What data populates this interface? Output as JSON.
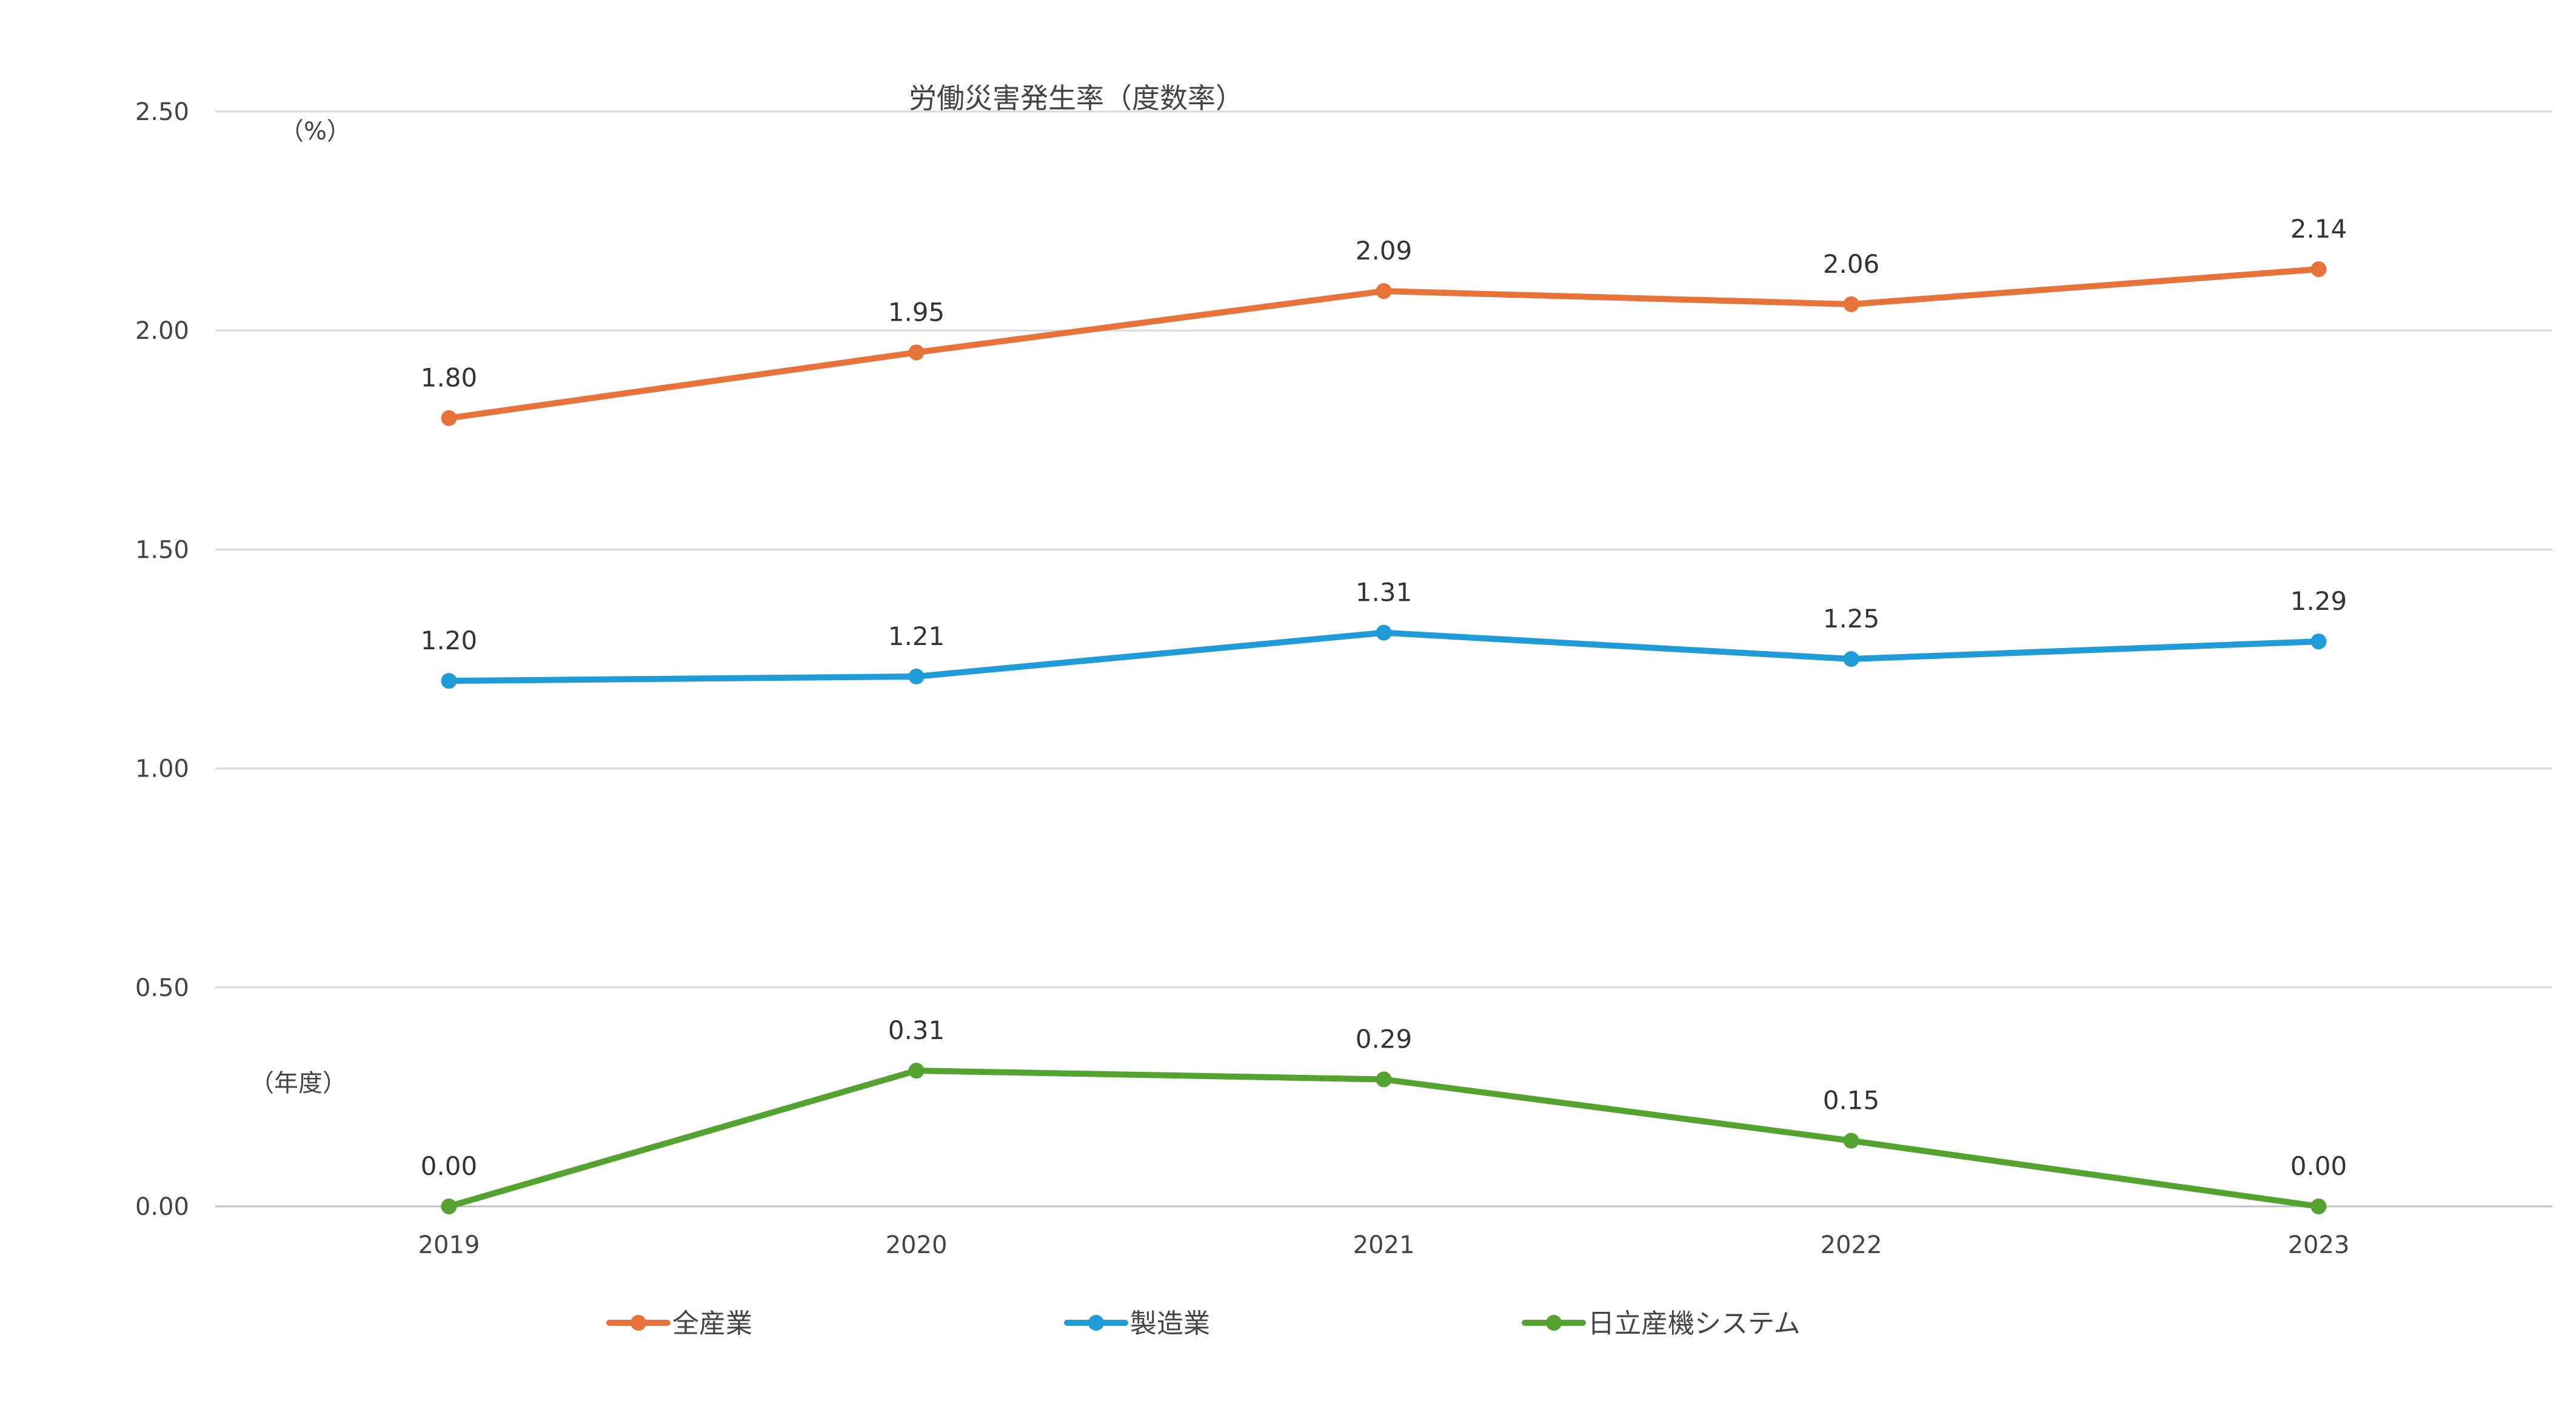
{
  "chart_data": {
    "type": "line",
    "title": "労働災害発生率（度数率）",
    "ylabel": "（%）",
    "xlabel": "（年度）",
    "categories": [
      "2019",
      "2020",
      "2021",
      "2022",
      "2023"
    ],
    "y_ticks": [
      "0.00",
      "0.50",
      "1.00",
      "1.50",
      "2.00",
      "2.50"
    ],
    "ylim": [
      0,
      2.5
    ],
    "grid": true,
    "legend_position": "bottom",
    "series": [
      {
        "name": "全産業",
        "color": "#E8733A",
        "values": [
          1.8,
          1.95,
          2.09,
          2.06,
          2.14
        ],
        "labels": [
          "1.80",
          "1.95",
          "2.09",
          "2.06",
          "2.14"
        ]
      },
      {
        "name": "製造業",
        "color": "#1F9BD7",
        "values": [
          1.2,
          1.21,
          1.31,
          1.25,
          1.29
        ],
        "labels": [
          "1.20",
          "1.21",
          "1.31",
          "1.25",
          "1.29"
        ]
      },
      {
        "name": "日立産機システム",
        "color": "#54A22F",
        "values": [
          0.0,
          0.31,
          0.29,
          0.15,
          0.0
        ],
        "labels": [
          "0.00",
          "0.31",
          "0.29",
          "0.15",
          "0.00"
        ]
      }
    ]
  }
}
